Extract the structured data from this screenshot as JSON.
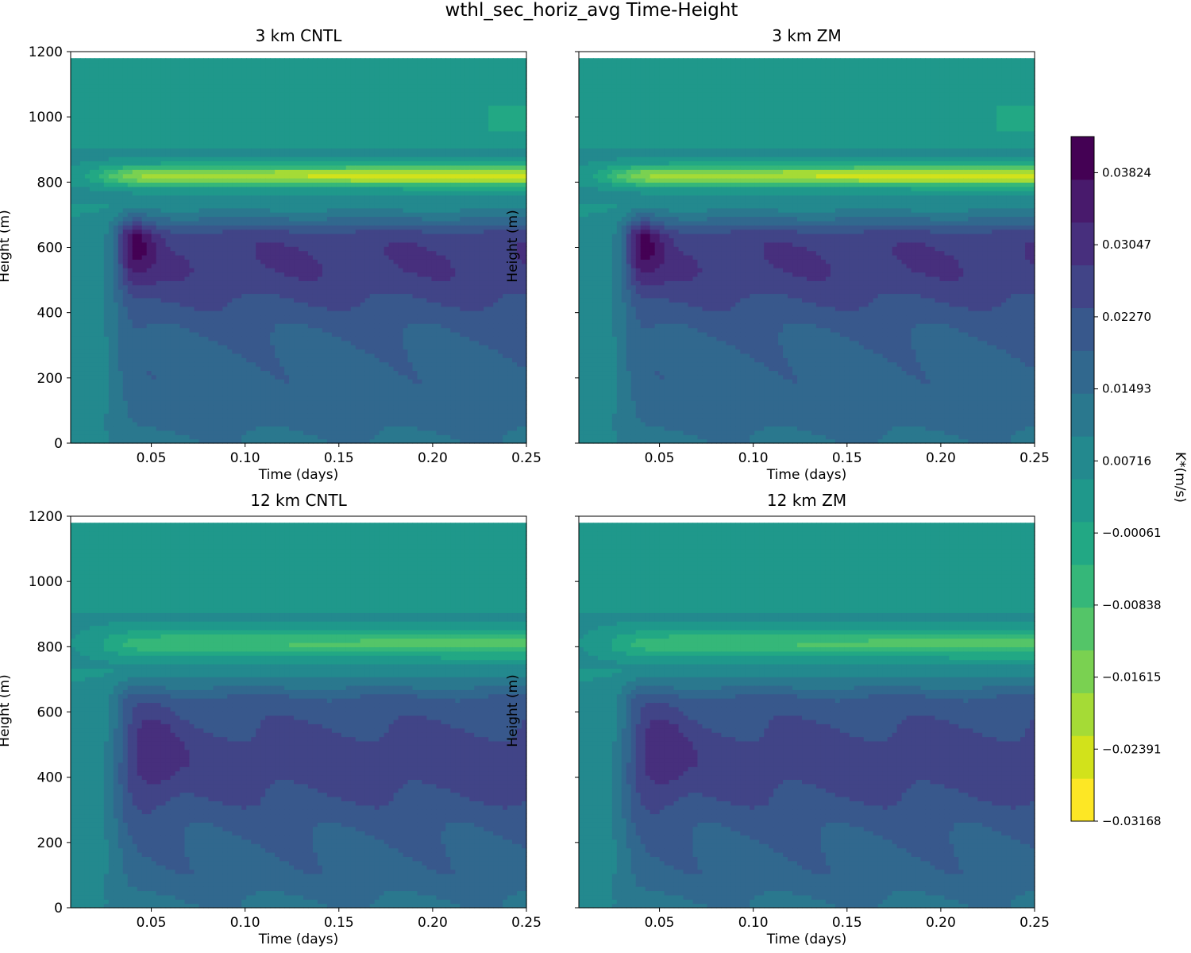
{
  "title": "wthl_sec_horiz_avg Time-Height",
  "colorbar": {
    "label": "K*(m/s)",
    "tick_labels": [
      "0.03824",
      "0.03047",
      "0.02270",
      "0.01493",
      "0.00716",
      "−0.00061",
      "−0.00838",
      "−0.01615",
      "−0.02391",
      "−0.03168"
    ],
    "tick_values": [
      0.03824,
      0.03047,
      0.0227,
      0.01493,
      0.00716,
      -0.00061,
      -0.00838,
      -0.01615,
      -0.02391,
      -0.03168
    ],
    "range": [
      -0.03168,
      0.04213
    ],
    "levels": 19,
    "colors": [
      "#fde725",
      "#d2e21b",
      "#a5db36",
      "#7ad151",
      "#54c568",
      "#35b779",
      "#22a884",
      "#1f988b",
      "#23898e",
      "#2a788e",
      "#31688e",
      "#38588c",
      "#414487",
      "#472f7d",
      "#481a6c",
      "#440154"
    ]
  },
  "chart_data": [
    {
      "type": "heatmap",
      "title": "3 km CNTL",
      "xlabel": "Time (days)",
      "ylabel": "Height (m)",
      "xlim": [
        0.007,
        0.25
      ],
      "ylim": [
        0,
        1200
      ],
      "xticks": [
        "0.05",
        "0.10",
        "0.15",
        "0.20",
        "0.25"
      ],
      "yticks": [
        "0",
        "200",
        "400",
        "600",
        "800",
        "1000",
        "1200"
      ],
      "data_top": 1180,
      "variant": "3km",
      "features": {
        "inversion_peak_height": 820,
        "inversion_min_value": -0.031,
        "core_time": 0.04,
        "core_height": 620,
        "core_max_value": 0.041,
        "mid_layer_value": 0.028
      }
    },
    {
      "type": "heatmap",
      "title": "3 km ZM",
      "xlabel": "Time (days)",
      "ylabel": "Height (m)",
      "xlim": [
        0.007,
        0.25
      ],
      "ylim": [
        0,
        1200
      ],
      "xticks": [
        "0.05",
        "0.10",
        "0.15",
        "0.20",
        "0.25"
      ],
      "yticks": [
        "0",
        "200",
        "400",
        "600",
        "800",
        "1000",
        "1200"
      ],
      "data_top": 1180,
      "variant": "3km",
      "features": {
        "inversion_peak_height": 820,
        "inversion_min_value": -0.031,
        "core_time": 0.04,
        "core_height": 620,
        "core_max_value": 0.041,
        "mid_layer_value": 0.028
      }
    },
    {
      "type": "heatmap",
      "title": "12 km CNTL",
      "xlabel": "Time (days)",
      "ylabel": "Height (m)",
      "xlim": [
        0.007,
        0.25
      ],
      "ylim": [
        0,
        1200
      ],
      "xticks": [
        "0.05",
        "0.10",
        "0.15",
        "0.20",
        "0.25"
      ],
      "yticks": [
        "0",
        "200",
        "400",
        "600",
        "800",
        "1000",
        "1200"
      ],
      "data_top": 1180,
      "variant": "12km",
      "features": {
        "inversion_peak_height": 810,
        "inversion_min_value": -0.017,
        "core_time": 0.05,
        "core_height": 470,
        "core_max_value": 0.033,
        "mid_layer_value": 0.026
      }
    },
    {
      "type": "heatmap",
      "title": "12 km ZM",
      "xlabel": "Time (days)",
      "ylabel": "Height (m)",
      "xlim": [
        0.007,
        0.25
      ],
      "ylim": [
        0,
        1200
      ],
      "xticks": [
        "0.05",
        "0.10",
        "0.15",
        "0.20",
        "0.25"
      ],
      "yticks": [
        "0",
        "200",
        "400",
        "600",
        "800",
        "1000",
        "1200"
      ],
      "data_top": 1180,
      "variant": "12km",
      "features": {
        "inversion_peak_height": 810,
        "inversion_min_value": -0.017,
        "core_time": 0.05,
        "core_height": 470,
        "core_max_value": 0.033,
        "mid_layer_value": 0.026
      }
    }
  ]
}
